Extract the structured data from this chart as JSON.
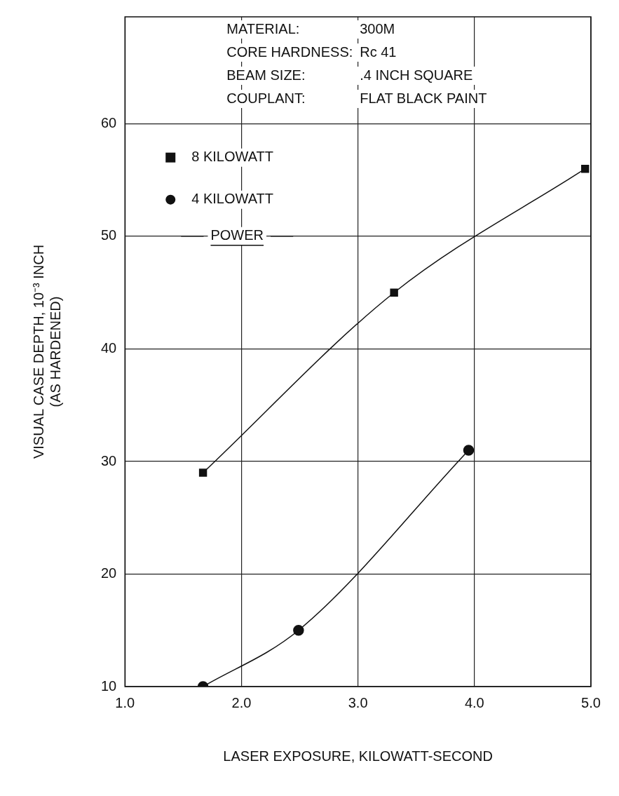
{
  "chart_data": {
    "type": "line",
    "xlabel": "LASER EXPOSURE, KILOWATT-SECOND",
    "ylabel": "VISUAL CASE DEPTH, 10⁻³ INCH\n(AS HARDENED)",
    "legend_title": "POWER",
    "legend": "top left",
    "grid": true,
    "line_style": "solid",
    "annotations": [
      "MATERIAL:",
      "300M",
      "CORE HARDNESS:",
      "Rc 41",
      "BEAM SIZE:",
      ".4 INCH SQUARE",
      "COUPLANT:",
      "FLAT BLACK PAINT"
    ],
    "xlim": [
      1.0,
      5.0
    ],
    "xticks": [
      {
        "value": 1,
        "label": "1.0"
      },
      {
        "value": 2,
        "label": "2.0"
      },
      {
        "value": 3,
        "label": "3.0"
      },
      {
        "value": 4,
        "label": "4.0"
      },
      {
        "value": 5,
        "label": "5.0"
      }
    ],
    "ylim": [
      10,
      69.5
    ],
    "yticks": [
      10,
      20,
      30,
      40,
      50,
      60
    ],
    "series": [
      {
        "name": "8 KILOWATT",
        "color": "#111111",
        "marker": "square",
        "x": [
          1.67,
          3.31,
          4.95
        ],
        "values": [
          29,
          45,
          56
        ]
      },
      {
        "name": "4 KILOWATT",
        "color": "#111111",
        "marker": "circle",
        "x": [
          1.67,
          2.49,
          3.95
        ],
        "values": [
          10,
          15,
          31
        ]
      }
    ]
  }
}
